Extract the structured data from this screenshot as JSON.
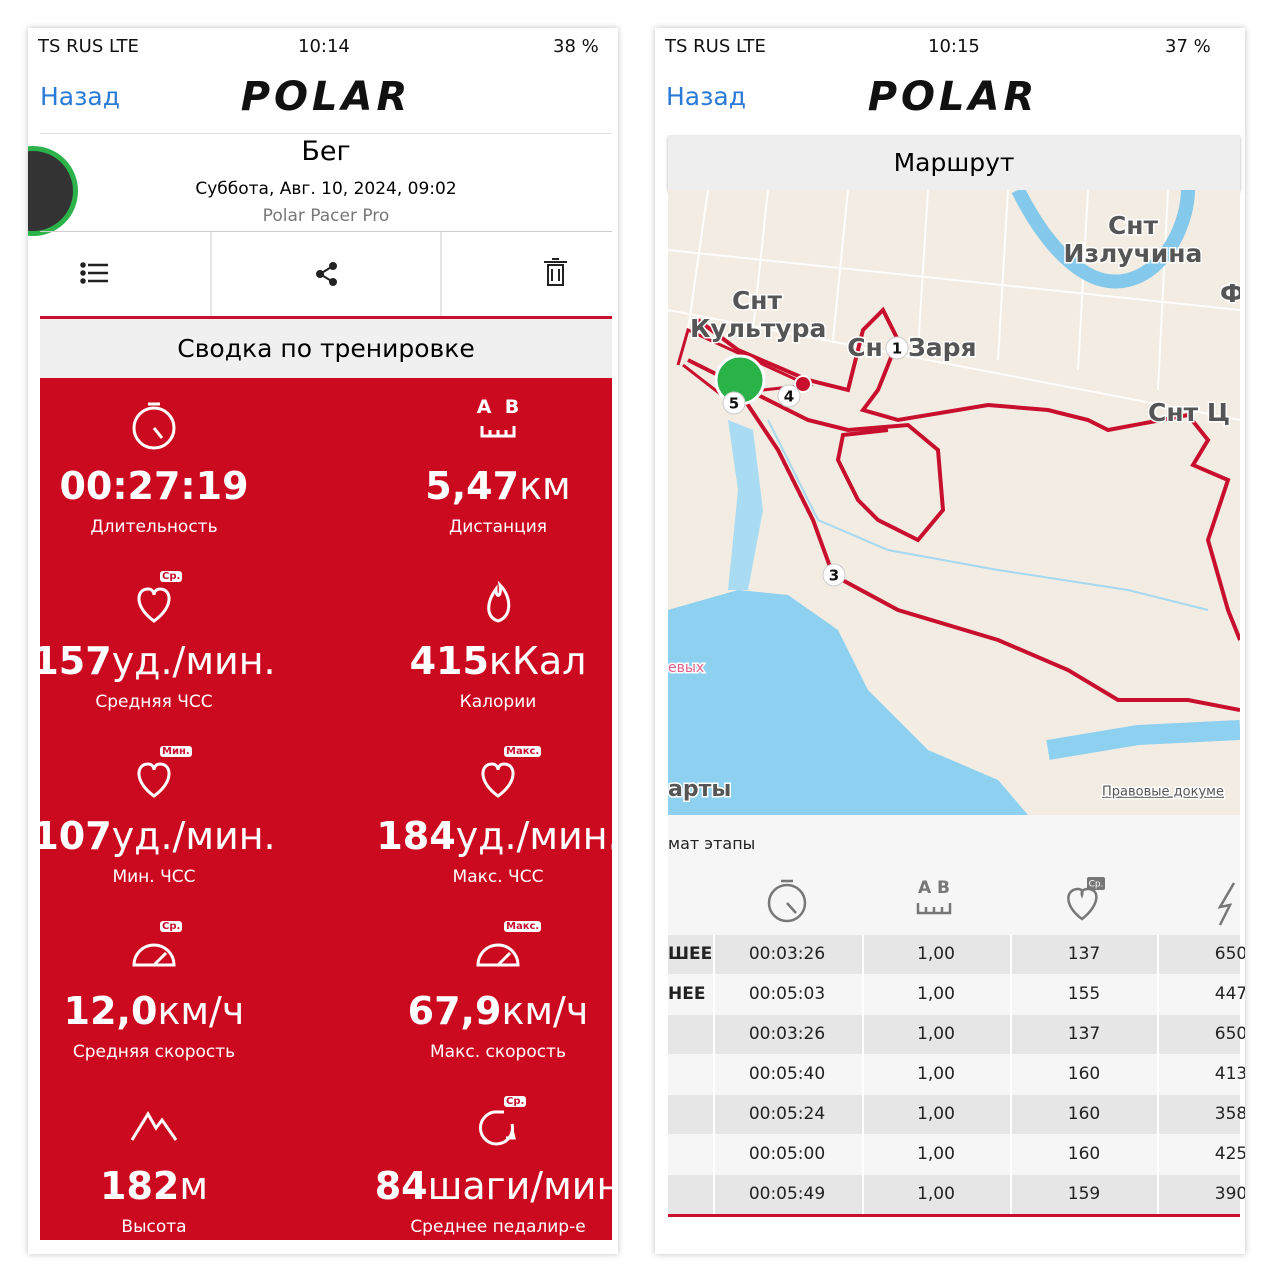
{
  "left": {
    "status": {
      "carrier": "TS RUS  LTE",
      "time": "10:14",
      "battery": "38 %"
    },
    "back": "Назад",
    "logo": "POLAR",
    "title": "Бег",
    "date": "Суббота, Авг. 10, 2024, 09:02",
    "device": "Polar Pacer Pro",
    "section": "Сводка по тренировке",
    "stats": [
      {
        "value": "00:27:19",
        "label": "Длительность"
      },
      {
        "value": "5,47",
        "unit": "км",
        "label": "Дистанция",
        "icon_text": "A  B"
      },
      {
        "value": "157",
        "unit": "уд./мин.",
        "label": "Средняя ЧСС",
        "badge": "Ср."
      },
      {
        "value": "415",
        "unit": "кКал",
        "label": "Калории"
      },
      {
        "value": "107",
        "unit": "уд./мин.",
        "label": "Мин. ЧСС",
        "badge": "Мин."
      },
      {
        "value": "184",
        "unit": "уд./мин.",
        "label": "Макс. ЧСС",
        "badge": "Макс."
      },
      {
        "value": "12,0",
        "unit": "км/ч",
        "label": "Средняя скорость",
        "badge": "Ср."
      },
      {
        "value": "67,9",
        "unit": "км/ч",
        "label": "Макс. скорость",
        "badge": "Макс."
      },
      {
        "value": "182",
        "unit": "м",
        "label": "Высота"
      },
      {
        "value": "84",
        "unit": "шаги/мин",
        "label": "Среднее педалир-е",
        "badge": "Ср."
      }
    ]
  },
  "right": {
    "status": {
      "carrier": "TS RUS  LTE",
      "time": "10:15",
      "battery": "37 %"
    },
    "back": "Назад",
    "logo": "POLAR",
    "title": "Маршрут",
    "map_labels": [
      "Снт",
      "Излучина",
      "Фр",
      "Снт",
      "Культура",
      "Сн",
      "Заря",
      "Снт Ц",
      "евых",
      "арты",
      "Правовые докуме"
    ],
    "markers": [
      "1",
      "3",
      "4",
      "5"
    ],
    "laps_title": "мат этапы",
    "header_icon_text": "A  B",
    "header_badge": "Ср.",
    "row_labels": [
      "ШЕЕ",
      "НЕЕ"
    ],
    "rows": [
      [
        "00:03:26",
        "1,00",
        "137",
        "650"
      ],
      [
        "00:05:03",
        "1,00",
        "155",
        "447"
      ],
      [
        "00:03:26",
        "1,00",
        "137",
        "650"
      ],
      [
        "00:05:40",
        "1,00",
        "160",
        "413"
      ],
      [
        "00:05:24",
        "1,00",
        "160",
        "358"
      ],
      [
        "00:05:00",
        "1,00",
        "160",
        "425"
      ],
      [
        "00:05:49",
        "1,00",
        "159",
        "390"
      ]
    ]
  }
}
